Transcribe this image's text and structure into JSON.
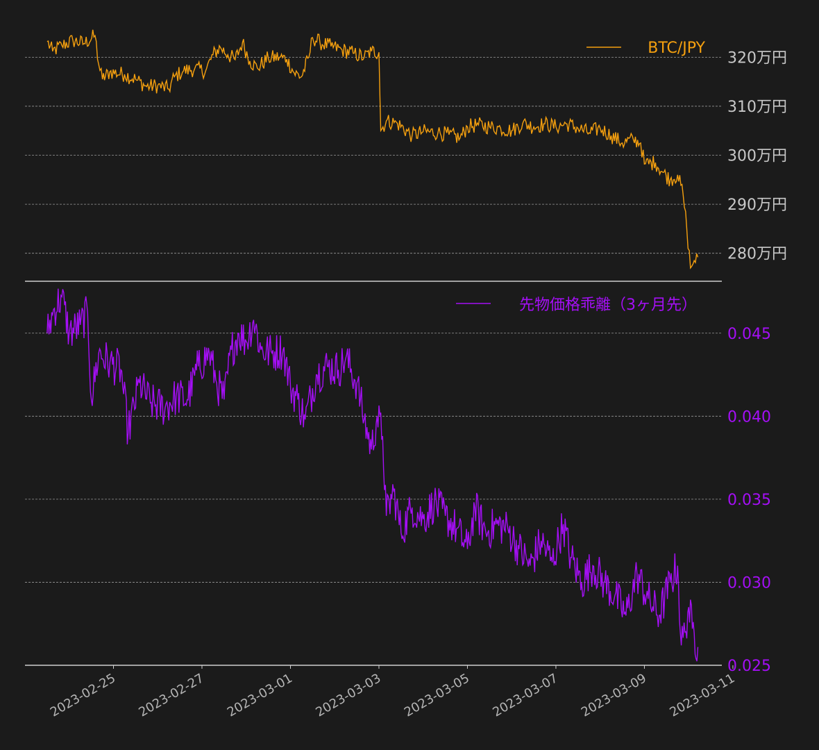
{
  "colors": {
    "background": "#1b1b1b",
    "btc": "#f5a00f",
    "premium": "#a40ff5",
    "grid": "#9a9a9a",
    "axis": "#d0d0d0",
    "date_text": "#b5b5b5",
    "btc_tick_text": "#c8c8c8"
  },
  "chart_data": [
    {
      "type": "line",
      "legend": {
        "label": "BTC/JPY",
        "position": "top-right"
      },
      "x_range": [
        "2023-02-23T12:00",
        "2023-03-09T18:00"
      ],
      "xlim": [
        "2023-02-23T00:00",
        "2023-03-10T18:00"
      ],
      "ylim": [
        2750000,
        3260000
      ],
      "yticks": [
        2800000,
        2900000,
        3000000,
        3100000,
        3200000
      ],
      "ytick_labels": [
        "280万円",
        "290万円",
        "300万円",
        "310万円",
        "320万円"
      ],
      "grid": true,
      "keypoints": [
        [
          "2023-02-23T12:00",
          3232000
        ],
        [
          "2023-02-23T15:00",
          3212000
        ],
        [
          "2023-02-23T20:00",
          3224000
        ],
        [
          "2023-02-24T02:00",
          3234000
        ],
        [
          "2023-02-24T08:00",
          3228000
        ],
        [
          "2023-02-24T14:00",
          3244000
        ],
        [
          "2023-02-24T16:00",
          3185000
        ],
        [
          "2023-02-24T18:00",
          3155000
        ],
        [
          "2023-02-24T22:00",
          3170000
        ],
        [
          "2023-02-25T06:00",
          3165000
        ],
        [
          "2023-02-25T12:00",
          3155000
        ],
        [
          "2023-02-25T18:00",
          3140000
        ],
        [
          "2023-02-26T00:00",
          3142000
        ],
        [
          "2023-02-26T06:00",
          3135000
        ],
        [
          "2023-02-26T09:00",
          3160000
        ],
        [
          "2023-02-26T14:00",
          3172000
        ],
        [
          "2023-02-26T20:00",
          3176000
        ],
        [
          "2023-02-27T02:00",
          3172000
        ],
        [
          "2023-02-27T06:00",
          3205000
        ],
        [
          "2023-02-27T10:00",
          3220000
        ],
        [
          "2023-02-27T14:00",
          3205000
        ],
        [
          "2023-02-27T18:00",
          3195000
        ],
        [
          "2023-02-27T22:00",
          3230000
        ],
        [
          "2023-02-28T02:00",
          3192000
        ],
        [
          "2023-02-28T06:00",
          3178000
        ],
        [
          "2023-02-28T12:00",
          3198000
        ],
        [
          "2023-02-28T18:00",
          3200000
        ],
        [
          "2023-02-28T22:00",
          3196000
        ],
        [
          "2023-03-01T02:00",
          3168000
        ],
        [
          "2023-03-01T06:00",
          3160000
        ],
        [
          "2023-03-01T10:00",
          3200000
        ],
        [
          "2023-03-01T12:00",
          3240000
        ],
        [
          "2023-03-01T16:00",
          3230000
        ],
        [
          "2023-03-01T22:00",
          3222000
        ],
        [
          "2023-03-02T04:00",
          3215000
        ],
        [
          "2023-03-02T10:00",
          3208000
        ],
        [
          "2023-03-02T16:00",
          3200000
        ],
        [
          "2023-03-02T20:00",
          3212000
        ],
        [
          "2023-03-03T00:00",
          3210000
        ],
        [
          "2023-03-03T01:00",
          3050000
        ],
        [
          "2023-03-03T04:00",
          3070000
        ],
        [
          "2023-03-03T10:00",
          3065000
        ],
        [
          "2023-03-03T18:00",
          3040000
        ],
        [
          "2023-03-04T00:00",
          3048000
        ],
        [
          "2023-03-04T08:00",
          3046000
        ],
        [
          "2023-03-04T14:00",
          3042000
        ],
        [
          "2023-03-04T20:00",
          3035000
        ],
        [
          "2023-03-05T00:00",
          3058000
        ],
        [
          "2023-03-05T06:00",
          3062000
        ],
        [
          "2023-03-05T12:00",
          3058000
        ],
        [
          "2023-03-05T18:00",
          3055000
        ],
        [
          "2023-03-06T00:00",
          3050000
        ],
        [
          "2023-03-06T06:00",
          3065000
        ],
        [
          "2023-03-06T12:00",
          3058000
        ],
        [
          "2023-03-06T18:00",
          3064000
        ],
        [
          "2023-03-07T00:00",
          3058000
        ],
        [
          "2023-03-07T06:00",
          3064000
        ],
        [
          "2023-03-07T12:00",
          3055000
        ],
        [
          "2023-03-07T18:00",
          3046000
        ],
        [
          "2023-03-08T00:00",
          3055000
        ],
        [
          "2023-03-08T06:00",
          3040000
        ],
        [
          "2023-03-08T12:00",
          3025000
        ],
        [
          "2023-03-08T18:00",
          3032000
        ],
        [
          "2023-03-08T22:00",
          3025000
        ],
        [
          "2023-03-09T00:00",
          2982000
        ],
        [
          "2023-03-09T06:00",
          2985000
        ],
        [
          "2023-03-09T10:00",
          2965000
        ],
        [
          "2023-03-09T14:00",
          2950000
        ],
        [
          "2023-03-09T18:00",
          2960000
        ],
        [
          "2023-03-09T21:00",
          2920000
        ],
        [
          "2023-03-09T23:00",
          2850000
        ],
        [
          "2023-03-10T01:00",
          2770000
        ],
        [
          "2023-03-10T03:00",
          2785000
        ],
        [
          "2023-03-10T05:00",
          2792000
        ]
      ]
    },
    {
      "type": "line",
      "legend": {
        "label": "先物価格乖離（3ヶ月先）",
        "position": "top-right"
      },
      "xlim": [
        "2023-02-23T00:00",
        "2023-03-10T18:00"
      ],
      "ylim": [
        0.025,
        0.0475
      ],
      "yticks": [
        0.025,
        0.03,
        0.035,
        0.04,
        0.045
      ],
      "ytick_labels": [
        "0.025",
        "0.030",
        "0.035",
        "0.040",
        "0.045"
      ],
      "grid": true,
      "keypoints": [
        [
          "2023-02-23T12:00",
          0.045
        ],
        [
          "2023-02-23T16:00",
          0.0465
        ],
        [
          "2023-02-23T20:00",
          0.0472
        ],
        [
          "2023-02-24T00:00",
          0.045
        ],
        [
          "2023-02-24T06:00",
          0.0455
        ],
        [
          "2023-02-24T10:00",
          0.0462
        ],
        [
          "2023-02-24T12:00",
          0.041
        ],
        [
          "2023-02-24T16:00",
          0.0438
        ],
        [
          "2023-02-24T22:00",
          0.0432
        ],
        [
          "2023-02-25T04:00",
          0.0428
        ],
        [
          "2023-02-25T08:00",
          0.039
        ],
        [
          "2023-02-25T14:00",
          0.042
        ],
        [
          "2023-02-25T20:00",
          0.0408
        ],
        [
          "2023-02-26T04:00",
          0.0405
        ],
        [
          "2023-02-26T10:00",
          0.0412
        ],
        [
          "2023-02-26T16:00",
          0.041
        ],
        [
          "2023-02-26T22:00",
          0.043
        ],
        [
          "2023-02-27T04:00",
          0.0438
        ],
        [
          "2023-02-27T08:00",
          0.042
        ],
        [
          "2023-02-27T12:00",
          0.041
        ],
        [
          "2023-02-27T16:00",
          0.044
        ],
        [
          "2023-02-27T20:00",
          0.045
        ],
        [
          "2023-02-28T00:00",
          0.0445
        ],
        [
          "2023-02-28T04:00",
          0.0458
        ],
        [
          "2023-02-28T08:00",
          0.044
        ],
        [
          "2023-02-28T14:00",
          0.0438
        ],
        [
          "2023-02-28T20:00",
          0.044
        ],
        [
          "2023-03-01T00:00",
          0.0418
        ],
        [
          "2023-03-01T04:00",
          0.041
        ],
        [
          "2023-03-01T08:00",
          0.0398
        ],
        [
          "2023-03-01T14:00",
          0.0425
        ],
        [
          "2023-03-01T20:00",
          0.043
        ],
        [
          "2023-03-02T02:00",
          0.0428
        ],
        [
          "2023-03-02T06:00",
          0.0435
        ],
        [
          "2023-03-02T12:00",
          0.042
        ],
        [
          "2023-03-02T16:00",
          0.0398
        ],
        [
          "2023-03-02T20:00",
          0.038
        ],
        [
          "2023-03-02T23:00",
          0.04
        ],
        [
          "2023-03-03T02:00",
          0.0388
        ],
        [
          "2023-03-03T04:00",
          0.034
        ],
        [
          "2023-03-03T08:00",
          0.0355
        ],
        [
          "2023-03-03T12:00",
          0.033
        ],
        [
          "2023-03-03T18:00",
          0.0345
        ],
        [
          "2023-03-04T00:00",
          0.0338
        ],
        [
          "2023-03-04T06:00",
          0.0348
        ],
        [
          "2023-03-04T12:00",
          0.034
        ],
        [
          "2023-03-04T18:00",
          0.0332
        ],
        [
          "2023-03-05T00:00",
          0.032
        ],
        [
          "2023-03-05T04:00",
          0.0345
        ],
        [
          "2023-03-05T10:00",
          0.033
        ],
        [
          "2023-03-05T16:00",
          0.0335
        ],
        [
          "2023-03-05T22:00",
          0.0332
        ],
        [
          "2023-03-06T04:00",
          0.032
        ],
        [
          "2023-03-06T10:00",
          0.031
        ],
        [
          "2023-03-06T16:00",
          0.0325
        ],
        [
          "2023-03-06T22:00",
          0.0312
        ],
        [
          "2023-03-07T04:00",
          0.0335
        ],
        [
          "2023-03-07T08:00",
          0.0315
        ],
        [
          "2023-03-07T14:00",
          0.03
        ],
        [
          "2023-03-07T20:00",
          0.031
        ],
        [
          "2023-03-08T02:00",
          0.03
        ],
        [
          "2023-03-08T08:00",
          0.0292
        ],
        [
          "2023-03-08T14:00",
          0.028
        ],
        [
          "2023-03-08T20:00",
          0.0305
        ],
        [
          "2023-03-09T02:00",
          0.029
        ],
        [
          "2023-03-09T08:00",
          0.028
        ],
        [
          "2023-03-09T14:00",
          0.03
        ],
        [
          "2023-03-09T18:00",
          0.031
        ],
        [
          "2023-03-09T20:00",
          0.0262
        ],
        [
          "2023-03-09T22:00",
          0.027
        ],
        [
          "2023-03-10T00:00",
          0.0285
        ],
        [
          "2023-03-10T02:00",
          0.0272
        ],
        [
          "2023-03-10T05:00",
          0.0261
        ]
      ]
    }
  ],
  "x_axis": {
    "ticks": [
      "2023-02-25",
      "2023-02-27",
      "2023-03-01",
      "2023-03-03",
      "2023-03-05",
      "2023-03-07",
      "2023-03-09",
      "2023-03-11"
    ],
    "tick_labels": [
      "2023-02-25",
      "2023-02-27",
      "2023-03-01",
      "2023-03-03",
      "2023-03-05",
      "2023-03-07",
      "2023-03-09",
      "2023-03-11"
    ],
    "label_rotation_deg": 30
  }
}
